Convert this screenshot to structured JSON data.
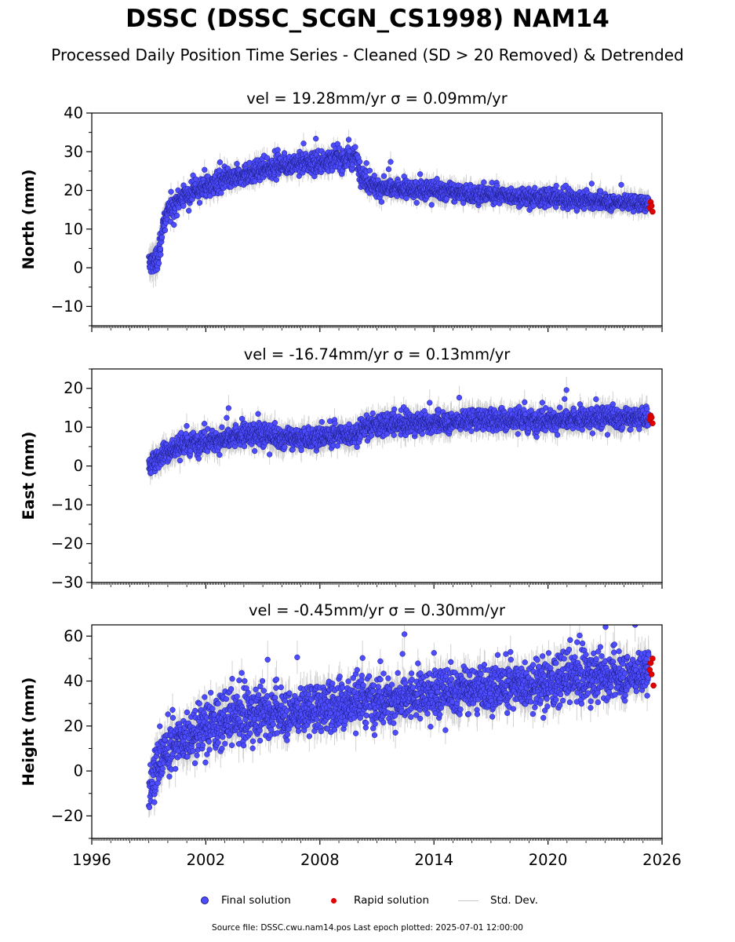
{
  "figure": {
    "title": "DSSC (DSSC_SCGN_CS1998) NAM14",
    "subtitle": "Processed Daily Position Time Series - Cleaned (SD > 20 Removed) & Detrended",
    "footnote": "Source file: DSSC.cwu.nam14.pos  Last epoch plotted: 2025-07-01 12:00:00"
  },
  "legend": {
    "final": "Final solution",
    "rapid": "Rapid solution",
    "std": "Std. Dev."
  },
  "colors": {
    "final": "#4d4dff",
    "final_edge": "#1a1a80",
    "rapid": "#e00000",
    "std": "#c8c8c8"
  },
  "chart_data": [
    {
      "type": "scatter",
      "title": "vel = 19.28mm/yr   σ = 0.09mm/yr",
      "ylabel": "North (mm)",
      "xlim": [
        1996,
        2026
      ],
      "ylim": [
        -15,
        40
      ],
      "yticks": [
        -10,
        0,
        10,
        20,
        30,
        40
      ],
      "series": [
        {
          "name": "Final solution",
          "x": [
            1999.0,
            1999.3,
            1999.5,
            1999.7,
            2000.0,
            2000.5,
            2001.0,
            2002.0,
            2003.0,
            2004.0,
            2005.0,
            2006.0,
            2007.0,
            2008.0,
            2009.0,
            2009.9,
            2010.3,
            2011.0,
            2012.0,
            2013.0,
            2014.0,
            2015.0,
            2016.0,
            2017.0,
            2018.0,
            2019.0,
            2020.0,
            2021.0,
            2022.0,
            2023.0,
            2024.0,
            2025.0
          ],
          "y": [
            1,
            2,
            2,
            10,
            14,
            17,
            19,
            21,
            22.5,
            24,
            25.5,
            26.5,
            27,
            27.5,
            28,
            28.5,
            23,
            21,
            20.5,
            20,
            20,
            19.5,
            19,
            19,
            18.5,
            18,
            18,
            17.5,
            17.5,
            17,
            17,
            16.5
          ],
          "std": [
            3,
            3,
            3,
            2.5,
            2,
            2,
            2,
            2,
            2,
            2,
            2,
            2,
            2,
            2,
            2,
            2,
            2,
            2,
            2,
            2,
            2,
            2,
            2,
            2,
            2,
            2,
            2,
            2,
            2,
            2,
            2,
            2
          ],
          "spread": [
            2.5,
            2.5,
            2.5,
            2,
            2,
            2,
            2,
            2,
            2,
            2,
            2,
            2,
            2,
            2,
            2,
            2,
            2,
            2,
            1.7,
            1.7,
            1.7,
            1.7,
            1.7,
            1.6,
            1.5,
            1.5,
            1.5,
            1.5,
            1.5,
            1.5,
            1.5,
            1.5
          ]
        },
        {
          "name": "Rapid solution",
          "x": [
            2025.35,
            2025.4,
            2025.45,
            2025.5
          ],
          "y": [
            15.5,
            17,
            16,
            14.5
          ]
        }
      ]
    },
    {
      "type": "scatter",
      "title": "vel = -16.74mm/yr   σ = 0.13mm/yr",
      "ylabel": "East (mm)",
      "xlim": [
        1996,
        2026
      ],
      "ylim": [
        -30,
        25
      ],
      "yticks": [
        -30,
        -20,
        -10,
        0,
        10,
        20
      ],
      "series": [
        {
          "name": "Final solution",
          "x": [
            1999.0,
            1999.5,
            2000.0,
            2001.0,
            2002.0,
            2003.0,
            2004.0,
            2005.0,
            2006.0,
            2007.0,
            2008.0,
            2009.0,
            2009.9,
            2010.3,
            2011.0,
            2012.0,
            2013.0,
            2014.0,
            2015.0,
            2016.0,
            2017.0,
            2018.0,
            2019.0,
            2020.0,
            2021.0,
            2022.0,
            2023.0,
            2024.0,
            2025.0
          ],
          "y": [
            0,
            2,
            4,
            5.5,
            6.5,
            7,
            8,
            8,
            7,
            7,
            7.5,
            8,
            8,
            10,
            10.5,
            10.5,
            11,
            11,
            11.5,
            12,
            12,
            12,
            11.5,
            12,
            12,
            12,
            12.5,
            12,
            12.5
          ],
          "std": [
            2.5,
            2.5,
            2.5,
            2.5,
            2.5,
            2.5,
            2.5,
            2.5,
            2.5,
            2.5,
            2.5,
            2.5,
            2.5,
            2.5,
            2.5,
            2.5,
            2.5,
            2.5,
            2.5,
            2.5,
            2.5,
            2.5,
            2.5,
            2.5,
            2.5,
            2.5,
            2.5,
            2.5,
            2.5
          ],
          "spread": [
            1.8,
            1.8,
            2,
            2,
            2,
            2,
            2.2,
            2.2,
            2,
            2,
            2,
            2,
            2,
            1.8,
            1.8,
            1.8,
            1.8,
            1.8,
            2,
            2,
            2,
            2,
            2,
            2,
            2,
            2,
            2,
            2,
            2
          ]
        },
        {
          "name": "Rapid solution",
          "x": [
            2025.35,
            2025.4,
            2025.45,
            2025.5
          ],
          "y": [
            12,
            13,
            12.5,
            11
          ]
        }
      ]
    },
    {
      "type": "scatter",
      "title": "vel = -0.45mm/yr   σ = 0.30mm/yr",
      "ylabel": "Height (mm)",
      "xlim": [
        1996,
        2026
      ],
      "ylim": [
        -30,
        65
      ],
      "yticks": [
        -20,
        0,
        20,
        40,
        60
      ],
      "xticks": [
        1996,
        2002,
        2008,
        2014,
        2020,
        2026
      ],
      "series": [
        {
          "name": "Final solution",
          "x": [
            1999.0,
            1999.3,
            1999.6,
            2000.0,
            2001.0,
            2002.0,
            2003.0,
            2004.0,
            2005.0,
            2006.0,
            2007.0,
            2008.0,
            2009.0,
            2010.0,
            2011.0,
            2012.0,
            2013.0,
            2014.0,
            2015.0,
            2016.0,
            2017.0,
            2018.0,
            2019.0,
            2020.0,
            2021.0,
            2022.0,
            2023.0,
            2024.0,
            2025.0
          ],
          "y": [
            -8,
            0,
            5,
            10,
            15,
            20,
            22,
            24,
            26,
            26,
            27,
            28,
            30,
            31,
            32,
            32,
            33,
            34,
            35,
            36,
            37,
            38,
            38,
            39,
            41,
            42,
            42,
            43,
            44
          ],
          "std": [
            5,
            6,
            6,
            6,
            6,
            6,
            6,
            6,
            6,
            6,
            6,
            6,
            6,
            6,
            6,
            6,
            6,
            6,
            6,
            6,
            6,
            6,
            6,
            6,
            6,
            6,
            6,
            6,
            6
          ],
          "spread": [
            8,
            8,
            8,
            8,
            8,
            8,
            8,
            8,
            8,
            8,
            8,
            8,
            8,
            8,
            7.5,
            7.5,
            7.5,
            7.5,
            7.5,
            7.5,
            7.5,
            7.5,
            7.5,
            7.5,
            7.5,
            7.5,
            7.5,
            7.5,
            7
          ]
        },
        {
          "name": "Rapid solution",
          "x": [
            2025.35,
            2025.4,
            2025.45,
            2025.5,
            2025.55
          ],
          "y": [
            45,
            48,
            43,
            50,
            38
          ]
        }
      ]
    }
  ]
}
